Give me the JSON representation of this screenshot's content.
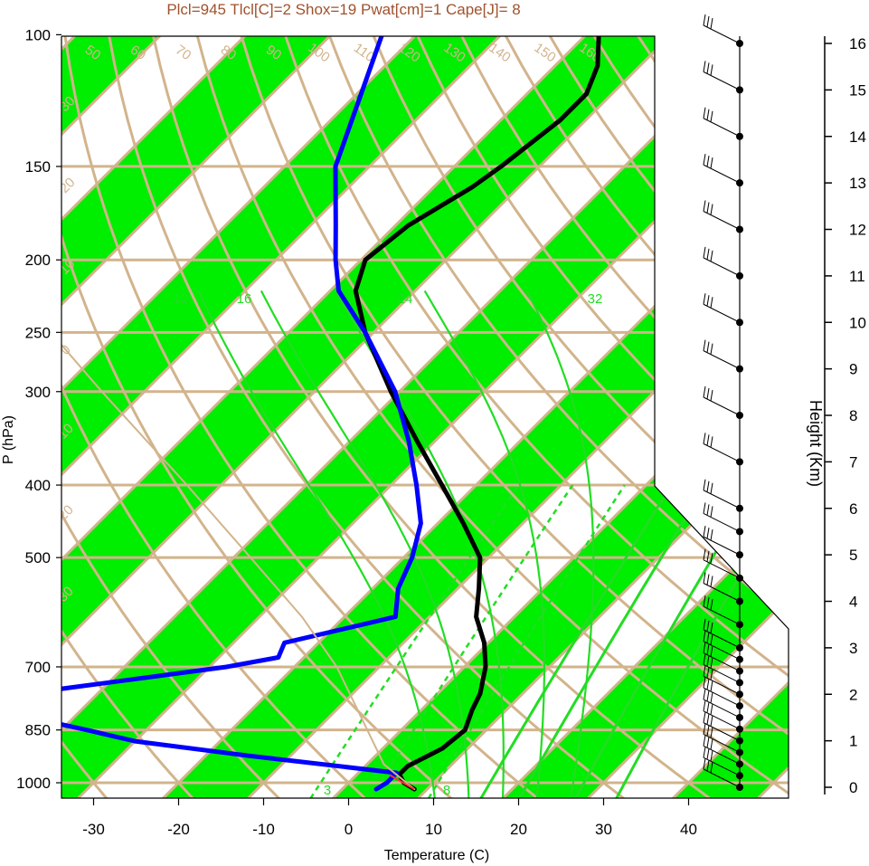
{
  "chart_data": {
    "type": "line",
    "title": "Plcl=945 Tlcl[C]=2 Shox=19 Pwat[cm]=1 Cape[J]= 8",
    "xlabel": "Temperature (C)",
    "ylabel": "P (hPa)",
    "y2label": "Height (Km)",
    "x_ticks": [
      -30,
      -20,
      -10,
      0,
      10,
      20,
      30,
      40
    ],
    "p_ticks": [
      100,
      150,
      200,
      250,
      300,
      400,
      500,
      700,
      850,
      1000
    ],
    "height_ticks": [
      0,
      1,
      2,
      3,
      4,
      5,
      6,
      7,
      8,
      9,
      10,
      11,
      12,
      13,
      14,
      15,
      16
    ],
    "xlim": [
      -33,
      36
    ],
    "plim": [
      1050,
      100
    ],
    "series": [
      {
        "role": "temperature",
        "color": "#000000",
        "points": [
          {
            "p": 1020,
            "t": 8.5
          },
          {
            "p": 1000,
            "t": 6.5
          },
          {
            "p": 975,
            "t": 5.0
          },
          {
            "p": 950,
            "t": 5.0
          },
          {
            "p": 900,
            "t": 7.0
          },
          {
            "p": 850,
            "t": 7.5
          },
          {
            "p": 800,
            "t": 6.0
          },
          {
            "p": 760,
            "t": 5.0
          },
          {
            "p": 700,
            "t": 2.5
          },
          {
            "p": 650,
            "t": -0.5
          },
          {
            "p": 600,
            "t": -4.5
          },
          {
            "p": 550,
            "t": -7.5
          },
          {
            "p": 500,
            "t": -11.0
          },
          {
            "p": 450,
            "t": -17.0
          },
          {
            "p": 400,
            "t": -24.0
          },
          {
            "p": 350,
            "t": -32.0
          },
          {
            "p": 300,
            "t": -41.0
          },
          {
            "p": 250,
            "t": -51.0
          },
          {
            "p": 220,
            "t": -57.0
          },
          {
            "p": 200,
            "t": -59.5
          },
          {
            "p": 180,
            "t": -58.5
          },
          {
            "p": 160,
            "t": -55.5
          },
          {
            "p": 150,
            "t": -54.5
          },
          {
            "p": 130,
            "t": -53.0
          },
          {
            "p": 120,
            "t": -53.0
          },
          {
            "p": 110,
            "t": -55.0
          },
          {
            "p": 100,
            "t": -58.5
          }
        ]
      },
      {
        "role": "dewpoint",
        "color": "#0000ff",
        "points": [
          {
            "p": 1020,
            "t": 4.0
          },
          {
            "p": 1000,
            "t": 4.5
          },
          {
            "p": 970,
            "t": 4.5
          },
          {
            "p": 920,
            "t": -15.0
          },
          {
            "p": 880,
            "t": -30.0
          },
          {
            "p": 850,
            "t": -37.0
          },
          {
            "p": 800,
            "t": -50.0
          },
          {
            "p": 780,
            "t": -55.0
          },
          {
            "p": 700,
            "t": -28.0
          },
          {
            "p": 680,
            "t": -23.0
          },
          {
            "p": 650,
            "t": -24.0
          },
          {
            "p": 600,
            "t": -14.0
          },
          {
            "p": 550,
            "t": -17.0
          },
          {
            "p": 500,
            "t": -19.0
          },
          {
            "p": 450,
            "t": -22.0
          },
          {
            "p": 400,
            "t": -27.0
          },
          {
            "p": 350,
            "t": -33.0
          },
          {
            "p": 300,
            "t": -40.5
          },
          {
            "p": 250,
            "t": -51.0
          },
          {
            "p": 220,
            "t": -59.0
          },
          {
            "p": 200,
            "t": -63.0
          },
          {
            "p": 180,
            "t": -67.0
          },
          {
            "p": 150,
            "t": -74.0
          },
          {
            "p": 100,
            "t": -84.0
          }
        ]
      },
      {
        "role": "parcel",
        "color": "#d2b48c",
        "points": [
          {
            "p": 1020,
            "t": 8.5
          },
          {
            "p": 945,
            "t": 2.0
          },
          {
            "p": 850,
            "t": -4.0
          },
          {
            "p": 700,
            "t": -15.0
          },
          {
            "p": 600,
            "t": -25.0
          },
          {
            "p": 500,
            "t": -38.0
          },
          {
            "p": 400,
            "t": -54.0
          },
          {
            "p": 300,
            "t": -75.0
          },
          {
            "p": 250,
            "t": -88.0
          }
        ]
      }
    ],
    "wind_profile_heights_km": [
      0,
      0.25,
      0.5,
      0.75,
      1,
      1.25,
      1.5,
      1.75,
      2,
      2.25,
      2.5,
      2.75,
      3,
      3.5,
      4,
      4.5,
      5,
      5.5,
      6,
      7,
      8,
      9,
      10,
      11,
      12,
      13,
      14,
      15,
      16
    ],
    "isotherm_labels": [
      "-30",
      "-20",
      "-10",
      "0",
      "10",
      "20",
      "30"
    ],
    "mixing_ratio_labels": [
      "12",
      "16",
      "24",
      "32"
    ],
    "low_mixing_ratio_labels": [
      "3",
      "8"
    ],
    "dry_adiabat_labels": [
      "50",
      "60",
      "70",
      "80",
      "90",
      "100",
      "110",
      "120",
      "130",
      "140",
      "150",
      "160"
    ]
  }
}
